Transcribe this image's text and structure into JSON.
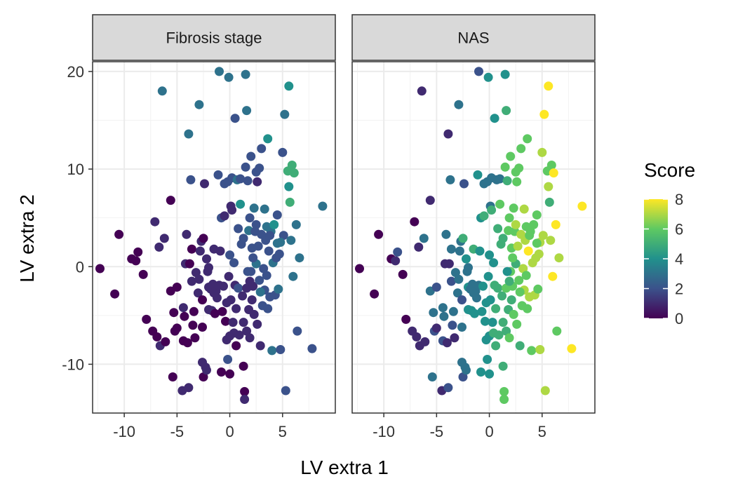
{
  "chart_data": {
    "type": "scatter",
    "facets": [
      "Fibrosis stage",
      "NAS"
    ],
    "xlabel": "LV extra 1",
    "ylabel": "LV extra 2",
    "xlim": [
      -13,
      10
    ],
    "ylim": [
      -15,
      21
    ],
    "x_ticks": [
      -10,
      -5,
      0,
      5
    ],
    "y_ticks": [
      -10,
      0,
      10,
      20
    ],
    "x_tick_labels": [
      "-10",
      "-5",
      "0",
      "5"
    ],
    "y_tick_labels": [
      "-10",
      "0",
      "10",
      "20"
    ],
    "grid": true,
    "legend": {
      "title": "Score",
      "position": "right",
      "min": 0,
      "max": 8,
      "ticks": [
        0,
        2,
        4,
        6,
        8
      ],
      "tick_labels": [
        "0",
        "2",
        "4",
        "6",
        "8"
      ],
      "palette": [
        "#440154",
        "#3b528b",
        "#21918c",
        "#5ec962",
        "#fde725"
      ]
    },
    "points": [
      {
        "x": -12.3,
        "y": -0.2,
        "fib": 0,
        "nas": 0
      },
      {
        "x": -10.9,
        "y": -2.8,
        "fib": 0,
        "nas": 0
      },
      {
        "x": -10.5,
        "y": 3.3,
        "fib": 0,
        "nas": 0
      },
      {
        "x": -9.3,
        "y": 0.8,
        "fib": 0,
        "nas": 0
      },
      {
        "x": -8.9,
        "y": 0.6,
        "fib": 0,
        "nas": 1
      },
      {
        "x": -8.7,
        "y": 1.5,
        "fib": 0,
        "nas": 2
      },
      {
        "x": -8.2,
        "y": -0.8,
        "fib": 0,
        "nas": 0
      },
      {
        "x": -7.9,
        "y": -5.4,
        "fib": 0,
        "nas": 0
      },
      {
        "x": -7.3,
        "y": -6.6,
        "fib": 0,
        "nas": 1
      },
      {
        "x": -7.1,
        "y": 4.6,
        "fib": 1,
        "nas": 0
      },
      {
        "x": -6.9,
        "y": -7.2,
        "fib": 0,
        "nas": 1
      },
      {
        "x": -6.7,
        "y": 2.0,
        "fib": 1,
        "nas": 1
      },
      {
        "x": -6.6,
        "y": -8.1,
        "fib": 1,
        "nas": 1
      },
      {
        "x": -6.4,
        "y": 18.0,
        "fib": 3,
        "nas": 1
      },
      {
        "x": -6.2,
        "y": 2.9,
        "fib": 1,
        "nas": 3
      },
      {
        "x": -6.1,
        "y": -7.7,
        "fib": 0,
        "nas": 1
      },
      {
        "x": -5.6,
        "y": 6.8,
        "fib": 0,
        "nas": 1
      },
      {
        "x": -5.6,
        "y": -2.5,
        "fib": 0,
        "nas": 3
      },
      {
        "x": -5.4,
        "y": -11.3,
        "fib": 0,
        "nas": 3
      },
      {
        "x": -5.3,
        "y": -4.7,
        "fib": 0,
        "nas": 3
      },
      {
        "x": -5.2,
        "y": -6.6,
        "fib": 0,
        "nas": 2
      },
      {
        "x": -5.0,
        "y": -2.1,
        "fib": 0,
        "nas": 2
      },
      {
        "x": -5.0,
        "y": -6.3,
        "fib": 0,
        "nas": 1
      },
      {
        "x": -4.5,
        "y": -12.7,
        "fib": 1,
        "nas": 1
      },
      {
        "x": -4.4,
        "y": -7.6,
        "fib": 0,
        "nas": 2
      },
      {
        "x": -4.4,
        "y": -4.2,
        "fib": 1,
        "nas": 3
      },
      {
        "x": -4.3,
        "y": -5.1,
        "fib": 0,
        "nas": 3
      },
      {
        "x": -4.2,
        "y": 0.3,
        "fib": 1,
        "nas": 1
      },
      {
        "x": -4.1,
        "y": 3.3,
        "fib": 1,
        "nas": 3
      },
      {
        "x": -4.0,
        "y": -7.8,
        "fib": 0,
        "nas": 1
      },
      {
        "x": -3.9,
        "y": 13.6,
        "fib": 3,
        "nas": 1
      },
      {
        "x": -3.9,
        "y": -12.4,
        "fib": 1,
        "nas": 2
      },
      {
        "x": -3.8,
        "y": 0.3,
        "fib": 0,
        "nas": 1
      },
      {
        "x": -3.7,
        "y": 8.9,
        "fib": 2,
        "nas": 3
      },
      {
        "x": -3.6,
        "y": -1.5,
        "fib": 1,
        "nas": 2
      },
      {
        "x": -3.6,
        "y": 1.8,
        "fib": 0,
        "nas": 3
      },
      {
        "x": -3.5,
        "y": -6.0,
        "fib": 0,
        "nas": 2
      },
      {
        "x": -3.4,
        "y": -4.6,
        "fib": 0,
        "nas": 3
      },
      {
        "x": -3.3,
        "y": -7.3,
        "fib": 0,
        "nas": 1
      },
      {
        "x": -3.2,
        "y": -0.6,
        "fib": 1,
        "nas": 3
      },
      {
        "x": -3.0,
        "y": -2.7,
        "fib": 1,
        "nas": 3
      },
      {
        "x": -2.9,
        "y": 16.6,
        "fib": 3,
        "nas": 3
      },
      {
        "x": -2.9,
        "y": -1.3,
        "fib": 1,
        "nas": 3
      },
      {
        "x": -2.8,
        "y": 1.6,
        "fib": 1,
        "nas": 3
      },
      {
        "x": -2.7,
        "y": 2.6,
        "fib": 1,
        "nas": 3
      },
      {
        "x": -2.6,
        "y": -3.4,
        "fib": 0,
        "nas": 2
      },
      {
        "x": -2.6,
        "y": -6.2,
        "fib": 0,
        "nas": 3
      },
      {
        "x": -2.6,
        "y": -9.8,
        "fib": 1,
        "nas": 3
      },
      {
        "x": -2.5,
        "y": -11.3,
        "fib": 0,
        "nas": 2
      },
      {
        "x": -2.5,
        "y": 2.9,
        "fib": 0,
        "nas": 5
      },
      {
        "x": -2.4,
        "y": 8.5,
        "fib": 1,
        "nas": 2
      },
      {
        "x": -2.3,
        "y": -10.3,
        "fib": 1,
        "nas": 3
      },
      {
        "x": -2.2,
        "y": -10.6,
        "fib": 1,
        "nas": 3
      },
      {
        "x": -2.1,
        "y": -0.5,
        "fib": 1,
        "nas": 3
      },
      {
        "x": -2.0,
        "y": -2.1,
        "fib": 1,
        "nas": 4
      },
      {
        "x": -2.0,
        "y": -4.4,
        "fib": 1,
        "nas": 4
      },
      {
        "x": -2.0,
        "y": -0.1,
        "fib": 1,
        "nas": 3
      },
      {
        "x": -1.8,
        "y": -2.3,
        "fib": 1,
        "nas": 3
      },
      {
        "x": -1.7,
        "y": -4.5,
        "fib": 1,
        "nas": 4
      },
      {
        "x": -1.6,
        "y": -1.8,
        "fib": 1,
        "nas": 3
      },
      {
        "x": -1.5,
        "y": 1.8,
        "fib": 1,
        "nas": 5
      },
      {
        "x": -1.4,
        "y": -4.8,
        "fib": 0,
        "nas": 4
      },
      {
        "x": -1.3,
        "y": -2.5,
        "fib": 1,
        "nas": 3
      },
      {
        "x": -1.2,
        "y": -3.2,
        "fib": 1,
        "nas": 3
      },
      {
        "x": -1.1,
        "y": 9.4,
        "fib": 2,
        "nas": 4
      },
      {
        "x": -1.0,
        "y": -1.9,
        "fib": 1,
        "nas": 3
      },
      {
        "x": -1.0,
        "y": 20.0,
        "fib": 3,
        "nas": 2
      },
      {
        "x": -0.9,
        "y": 1.6,
        "fib": 1,
        "nas": 4
      },
      {
        "x": -0.8,
        "y": -10.8,
        "fib": 0,
        "nas": 4
      },
      {
        "x": -0.8,
        "y": 5.0,
        "fib": 2,
        "nas": 4
      },
      {
        "x": -0.7,
        "y": -4.6,
        "fib": 0,
        "nas": 4
      },
      {
        "x": -0.6,
        "y": -2.0,
        "fib": 1,
        "nas": 4
      },
      {
        "x": -0.5,
        "y": 5.2,
        "fib": 1,
        "nas": 5
      },
      {
        "x": -0.5,
        "y": 8.5,
        "fib": 2,
        "nas": 3
      },
      {
        "x": -0.4,
        "y": -5.6,
        "fib": 0,
        "nas": 4
      },
      {
        "x": -0.3,
        "y": -3.7,
        "fib": 1,
        "nas": 4
      },
      {
        "x": -0.3,
        "y": -7.5,
        "fib": 1,
        "nas": 4
      },
      {
        "x": -0.2,
        "y": 8.7,
        "fib": 2,
        "nas": 3
      },
      {
        "x": -0.2,
        "y": -9.5,
        "fib": 2,
        "nas": 4
      },
      {
        "x": -0.1,
        "y": 19.4,
        "fib": 3,
        "nas": 4
      },
      {
        "x": 0.0,
        "y": -11.0,
        "fib": 0,
        "nas": 4
      },
      {
        "x": 0.0,
        "y": 1.2,
        "fib": 2,
        "nas": 4
      },
      {
        "x": 0.0,
        "y": -7.1,
        "fib": 1,
        "nas": 4
      },
      {
        "x": 0.1,
        "y": 6.2,
        "fib": 1,
        "nas": 3
      },
      {
        "x": 0.1,
        "y": -3.4,
        "fib": 1,
        "nas": 4
      },
      {
        "x": 0.2,
        "y": 5.8,
        "fib": 1,
        "nas": 5
      },
      {
        "x": 0.2,
        "y": 9.1,
        "fib": 2,
        "nas": 3
      },
      {
        "x": 0.3,
        "y": -5.7,
        "fib": 1,
        "nas": 4
      },
      {
        "x": 0.4,
        "y": -6.8,
        "fib": 1,
        "nas": 5
      },
      {
        "x": 0.5,
        "y": 15.2,
        "fib": 2,
        "nas": 4
      },
      {
        "x": 0.5,
        "y": -1.9,
        "fib": 1,
        "nas": 5
      },
      {
        "x": 0.6,
        "y": -8.1,
        "fib": 0,
        "nas": 5
      },
      {
        "x": 0.6,
        "y": -4.3,
        "fib": 1,
        "nas": 5
      },
      {
        "x": 0.7,
        "y": 8.9,
        "fib": 3,
        "nas": 3
      },
      {
        "x": 0.8,
        "y": 3.9,
        "fib": 2,
        "nas": 5
      },
      {
        "x": 0.8,
        "y": -2.2,
        "fib": 2,
        "nas": 5
      },
      {
        "x": 0.9,
        "y": -7.0,
        "fib": 1,
        "nas": 5
      },
      {
        "x": 1.0,
        "y": 9.0,
        "fib": 2,
        "nas": 3
      },
      {
        "x": 1.0,
        "y": 6.4,
        "fib": 4,
        "nas": 6
      },
      {
        "x": 1.1,
        "y": 2.3,
        "fib": 2,
        "nas": 5
      },
      {
        "x": 1.2,
        "y": -3.0,
        "fib": 1,
        "nas": 5
      },
      {
        "x": 1.3,
        "y": -5.7,
        "fib": 1,
        "nas": 5
      },
      {
        "x": 1.3,
        "y": -10.2,
        "fib": 0,
        "nas": 5
      },
      {
        "x": 1.3,
        "y": 2.9,
        "fib": 2,
        "nas": 5
      },
      {
        "x": 1.4,
        "y": -12.8,
        "fib": 0,
        "nas": 6
      },
      {
        "x": 1.4,
        "y": -13.6,
        "fib": 1,
        "nas": 6
      },
      {
        "x": 1.5,
        "y": 19.7,
        "fib": 3,
        "nas": 4
      },
      {
        "x": 1.5,
        "y": 10.2,
        "fib": 2,
        "nas": 6
      },
      {
        "x": 1.6,
        "y": 16.0,
        "fib": 3,
        "nas": 5
      },
      {
        "x": 1.6,
        "y": -2.2,
        "fib": 1,
        "nas": 6
      },
      {
        "x": 1.6,
        "y": -6.6,
        "fib": 1,
        "nas": 5
      },
      {
        "x": 1.7,
        "y": 8.8,
        "fib": 2,
        "nas": 5
      },
      {
        "x": 1.8,
        "y": 3.7,
        "fib": 3,
        "nas": 6
      },
      {
        "x": 1.8,
        "y": -4.4,
        "fib": 1,
        "nas": 5
      },
      {
        "x": 1.9,
        "y": 5.0,
        "fib": 2,
        "nas": 6
      },
      {
        "x": 1.9,
        "y": -7.3,
        "fib": 1,
        "nas": 6
      },
      {
        "x": 2.0,
        "y": -0.5,
        "fib": 2,
        "nas": 6
      },
      {
        "x": 2.0,
        "y": 11.3,
        "fib": 2,
        "nas": 6
      },
      {
        "x": 2.1,
        "y": -3.4,
        "fib": 1,
        "nas": 5
      },
      {
        "x": 2.1,
        "y": 1.9,
        "fib": 2,
        "nas": 6
      },
      {
        "x": 2.2,
        "y": -2.0,
        "fib": 1,
        "nas": 6
      },
      {
        "x": 2.3,
        "y": 6.0,
        "fib": 3,
        "nas": 6
      },
      {
        "x": 2.3,
        "y": -4.9,
        "fib": 1,
        "nas": 6
      },
      {
        "x": 2.4,
        "y": 3.6,
        "fib": 2,
        "nas": 6
      },
      {
        "x": 2.5,
        "y": 4.3,
        "fib": 2,
        "nas": 7
      },
      {
        "x": 2.5,
        "y": 9.7,
        "fib": 2,
        "nas": 6
      },
      {
        "x": 2.6,
        "y": -5.9,
        "fib": 1,
        "nas": 6
      },
      {
        "x": 2.6,
        "y": 8.7,
        "fib": 1,
        "nas": 6
      },
      {
        "x": 2.7,
        "y": 2.1,
        "fib": 2,
        "nas": 7
      },
      {
        "x": 2.8,
        "y": -1.4,
        "fib": 2,
        "nas": 6
      },
      {
        "x": 2.8,
        "y": 10.1,
        "fib": 2,
        "nas": 6
      },
      {
        "x": 2.9,
        "y": -8.1,
        "fib": 1,
        "nas": 5
      },
      {
        "x": 3.0,
        "y": 3.3,
        "fib": 2,
        "nas": 7
      },
      {
        "x": 3.0,
        "y": 12.1,
        "fib": 2,
        "nas": 6
      },
      {
        "x": 3.1,
        "y": -4.0,
        "fib": 2,
        "nas": 6
      },
      {
        "x": 3.2,
        "y": -0.2,
        "fib": 2,
        "nas": 7
      },
      {
        "x": 3.3,
        "y": -2.4,
        "fib": 2,
        "nas": 7
      },
      {
        "x": 3.4,
        "y": 2.7,
        "fib": 2,
        "nas": 7
      },
      {
        "x": 3.5,
        "y": 4.1,
        "fib": 3,
        "nas": 6
      },
      {
        "x": 3.6,
        "y": 13.1,
        "fib": 4,
        "nas": 6
      },
      {
        "x": 3.6,
        "y": -4.3,
        "fib": 2,
        "nas": 6
      },
      {
        "x": 3.7,
        "y": 1.6,
        "fib": 2,
        "nas": 8
      },
      {
        "x": 3.8,
        "y": -3.1,
        "fib": 2,
        "nas": 7
      },
      {
        "x": 3.9,
        "y": 3.6,
        "fib": 3,
        "nas": 6
      },
      {
        "x": 4.0,
        "y": -8.6,
        "fib": 3,
        "nas": 6
      },
      {
        "x": 4.1,
        "y": 0.4,
        "fib": 3,
        "nas": 7
      },
      {
        "x": 4.2,
        "y": 4.3,
        "fib": 4,
        "nas": 6
      },
      {
        "x": 4.3,
        "y": -2.9,
        "fib": 2,
        "nas": 7
      },
      {
        "x": 4.4,
        "y": 0.9,
        "fib": 2,
        "nas": 7
      },
      {
        "x": 4.5,
        "y": 5.3,
        "fib": 2,
        "nas": 6
      },
      {
        "x": 4.6,
        "y": -2.3,
        "fib": 3,
        "nas": 6
      },
      {
        "x": 4.7,
        "y": 1.3,
        "fib": 2,
        "nas": 7
      },
      {
        "x": 4.8,
        "y": -8.5,
        "fib": 2,
        "nas": 7
      },
      {
        "x": 5.0,
        "y": 11.7,
        "fib": 2,
        "nas": 7
      },
      {
        "x": 5.1,
        "y": 3.2,
        "fib": 2,
        "nas": 7
      },
      {
        "x": 5.2,
        "y": 15.6,
        "fib": 3,
        "nas": 8
      },
      {
        "x": 5.3,
        "y": -12.7,
        "fib": 2,
        "nas": 7
      },
      {
        "x": 5.5,
        "y": 9.8,
        "fib": 5,
        "nas": 6
      },
      {
        "x": 5.6,
        "y": 18.5,
        "fib": 4,
        "nas": 8
      },
      {
        "x": 5.6,
        "y": 8.2,
        "fib": 4,
        "nas": 7
      },
      {
        "x": 5.7,
        "y": 6.6,
        "fib": 5,
        "nas": 5
      },
      {
        "x": 5.8,
        "y": 2.7,
        "fib": 3,
        "nas": 7
      },
      {
        "x": 5.9,
        "y": 10.4,
        "fib": 5,
        "nas": 6
      },
      {
        "x": 6.0,
        "y": -1.0,
        "fib": 3,
        "nas": 8
      },
      {
        "x": 6.1,
        "y": 9.6,
        "fib": 5,
        "nas": 8
      },
      {
        "x": 6.3,
        "y": 4.3,
        "fib": 3,
        "nas": 8
      },
      {
        "x": 6.4,
        "y": -6.6,
        "fib": 2,
        "nas": 6
      },
      {
        "x": 6.6,
        "y": 0.9,
        "fib": 3,
        "nas": 7
      },
      {
        "x": 7.8,
        "y": -8.4,
        "fib": 2,
        "nas": 8
      },
      {
        "x": 8.8,
        "y": 6.2,
        "fib": 3,
        "nas": 8
      },
      {
        "x": 2.5,
        "y": 0.3,
        "fib": 3,
        "nas": 5
      },
      {
        "x": 3.3,
        "y": 5.9,
        "fib": 3,
        "nas": 7
      },
      {
        "x": 1.7,
        "y": -0.5,
        "fib": 2,
        "nas": 4
      },
      {
        "x": 4.8,
        "y": 2.5,
        "fib": 3,
        "nas": 7
      },
      {
        "x": 2.9,
        "y": -2.6,
        "fib": 3,
        "nas": 6
      },
      {
        "x": 0.4,
        "y": 0.4,
        "fib": 2,
        "nas": 4
      },
      {
        "x": 3.8,
        "y": 3.2,
        "fib": 2,
        "nas": 6
      },
      {
        "x": 1.9,
        "y": -1.5,
        "fib": 1,
        "nas": 5
      },
      {
        "x": 4.5,
        "y": 2.4,
        "fib": 3,
        "nas": 6
      },
      {
        "x": -1.5,
        "y": -2.7,
        "fib": 1,
        "nas": 3
      },
      {
        "x": -2.2,
        "y": 0.8,
        "fib": 1,
        "nas": 4
      },
      {
        "x": 2.2,
        "y": 0.9,
        "fib": 2,
        "nas": 6
      },
      {
        "x": 3.5,
        "y": -0.9,
        "fib": 2,
        "nas": 6
      },
      {
        "x": -0.1,
        "y": -1.0,
        "fib": 1,
        "nas": 4
      }
    ]
  }
}
